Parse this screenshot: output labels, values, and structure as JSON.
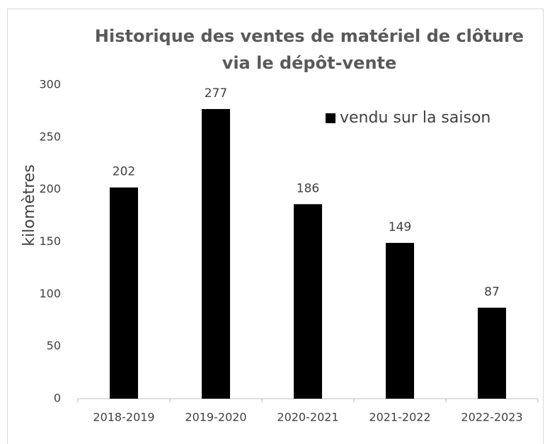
{
  "chart_data": {
    "type": "bar",
    "title": [
      "Historique des ventes de matériel de clôture",
      "via le dépôt-vente"
    ],
    "y_label": "kilomètres",
    "categories": [
      "2018-2019",
      "2019-2020",
      "2020-2021",
      "2021-2022",
      "2022-2023"
    ],
    "series": [
      {
        "name": "vendu sur la saison",
        "color": "#000000",
        "values": [
          202,
          277,
          186,
          149,
          87
        ]
      }
    ],
    "ylim": [
      0,
      300
    ],
    "yticks": [
      0,
      50,
      100,
      150,
      200,
      250,
      300
    ],
    "grid": false,
    "legend": "top-right"
  }
}
